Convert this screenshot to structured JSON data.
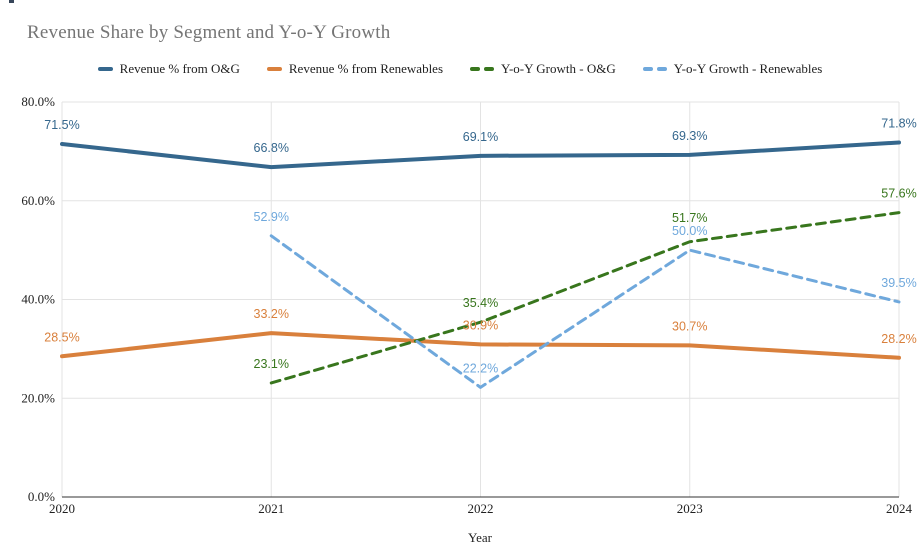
{
  "chart_data": {
    "type": "line",
    "title": "Revenue Share by Segment and Y-o-Y Growth",
    "xlabel": "Year",
    "ylabel": "",
    "categories": [
      "2020",
      "2021",
      "2022",
      "2023",
      "2024"
    ],
    "series": [
      {
        "name": "Revenue % from O&G",
        "color": "#35678d",
        "style": "solid",
        "values": [
          71.5,
          66.8,
          69.1,
          69.3,
          71.8
        ]
      },
      {
        "name": "Revenue % from Renewables",
        "color": "#d9803c",
        "style": "solid",
        "values": [
          28.5,
          33.2,
          30.9,
          30.7,
          28.2
        ]
      },
      {
        "name": "Y-o-Y Growth - O&G",
        "color": "#38761d",
        "style": "dashed",
        "values": [
          null,
          23.1,
          35.4,
          51.7,
          57.6
        ]
      },
      {
        "name": "Y-o-Y Growth - Renewables",
        "color": "#6fa8dc",
        "style": "dashed",
        "values": [
          null,
          52.9,
          22.2,
          50.0,
          39.5
        ]
      }
    ],
    "ylim": [
      0,
      80
    ],
    "y_ticks": [
      {
        "value": 0,
        "label": "0.0%"
      },
      {
        "value": 20,
        "label": "20.0%"
      },
      {
        "value": 40,
        "label": "40.0%"
      },
      {
        "value": 60,
        "label": "60.0%"
      },
      {
        "value": 80,
        "label": "80.0%"
      }
    ],
    "grid": true,
    "legend_position": "top",
    "data_labels": true,
    "label_format": "percent_1dp"
  },
  "style": {
    "title_color": "#757575",
    "grid_color": "#e3e3e3",
    "axis_line_color": "#333333",
    "tick_text_color": "#1f1f1f"
  }
}
